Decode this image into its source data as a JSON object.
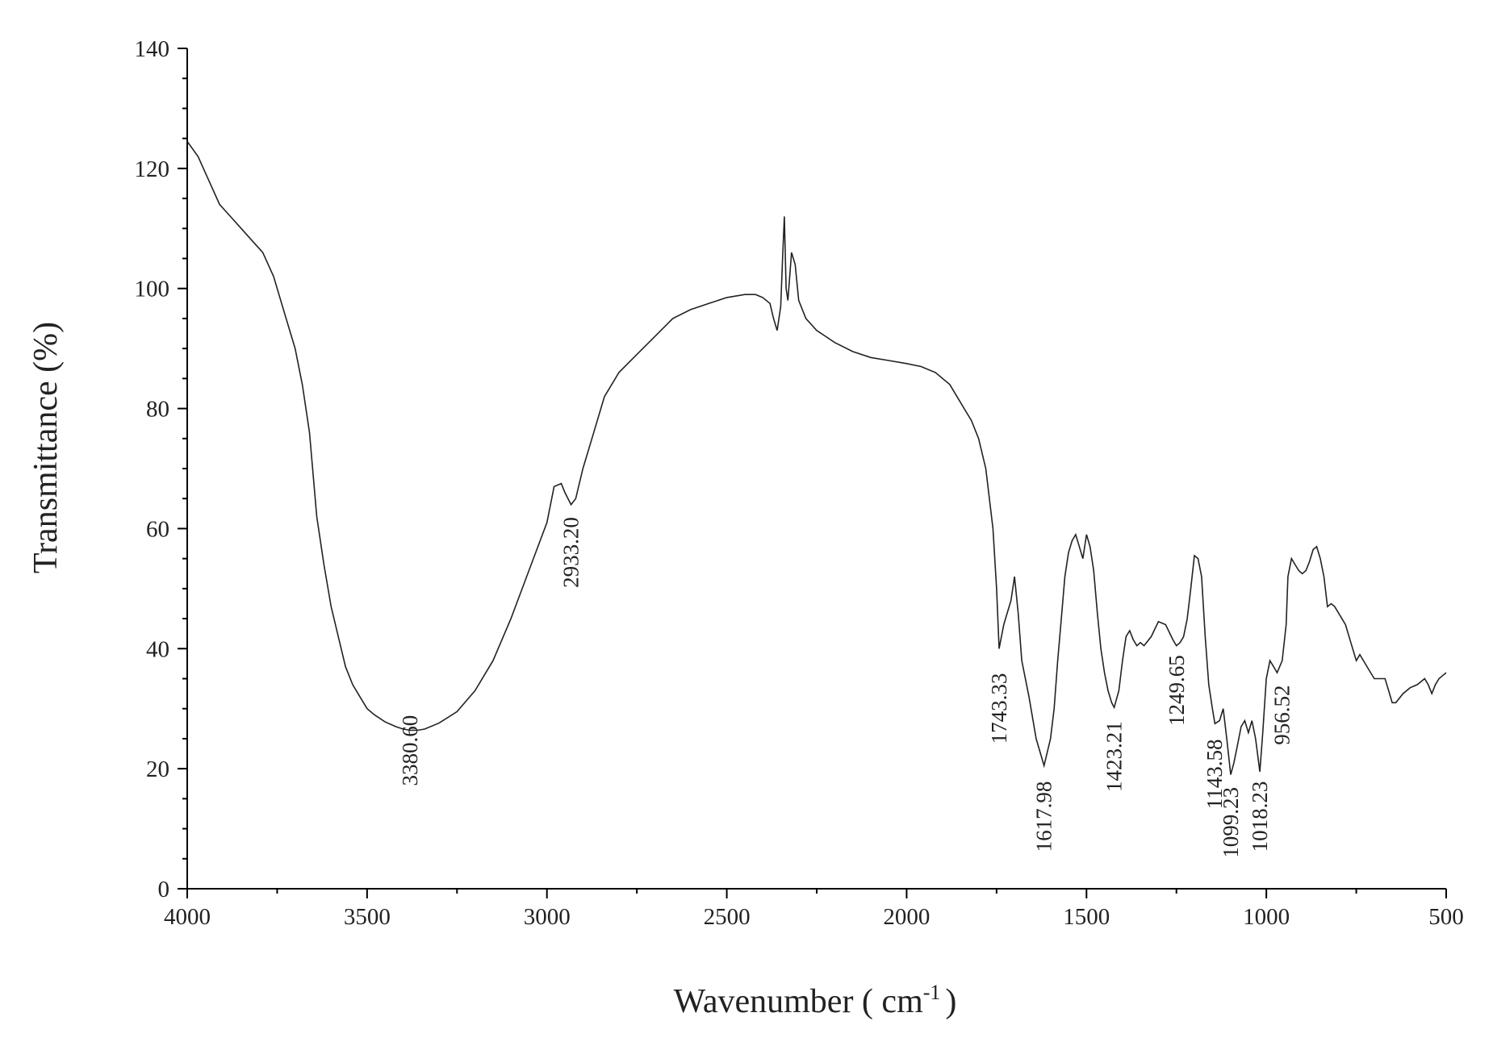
{
  "chart_data": {
    "type": "line",
    "title": "",
    "xlabel": "Wavenumber ( cm",
    "xlabel_sup": "-1",
    "xlabel_close": ")",
    "ylabel": "Transmittance (%)",
    "xlim": [
      4000,
      500
    ],
    "ylim": [
      0,
      140
    ],
    "x_reversed": true,
    "grid": false,
    "xticks": [
      4000,
      3500,
      3000,
      2500,
      2000,
      1500,
      1000,
      500
    ],
    "yticks": [
      0,
      20,
      40,
      60,
      80,
      100,
      120,
      140
    ],
    "xtick_labels": [
      "4000",
      "3500",
      "3000",
      "2500",
      "2000",
      "1500",
      "1000",
      "500"
    ],
    "ytick_labels": [
      "0",
      "20",
      "40",
      "60",
      "80",
      "100",
      "120",
      "140"
    ],
    "series": [
      {
        "x": [
          4000,
          3970,
          3940,
          3910,
          3880,
          3850,
          3820,
          3790,
          3760,
          3730,
          3700,
          3680,
          3660,
          3640,
          3620,
          3600,
          3580,
          3560,
          3540,
          3520,
          3500,
          3480,
          3450,
          3420,
          3400,
          3380,
          3360,
          3340,
          3300,
          3250,
          3200,
          3150,
          3100,
          3050,
          3000,
          2980,
          2960,
          2950,
          2933,
          2920,
          2900,
          2870,
          2840,
          2800,
          2750,
          2700,
          2650,
          2600,
          2550,
          2500,
          2450,
          2420,
          2400,
          2380,
          2370,
          2360,
          2350,
          2345,
          2340,
          2335,
          2330,
          2320,
          2310,
          2300,
          2280,
          2250,
          2200,
          2150,
          2100,
          2050,
          2000,
          1960,
          1920,
          1880,
          1860,
          1840,
          1820,
          1800,
          1780,
          1760,
          1750,
          1743,
          1730,
          1720,
          1710,
          1700,
          1690,
          1680,
          1660,
          1640,
          1618,
          1600,
          1590,
          1580,
          1570,
          1560,
          1550,
          1540,
          1530,
          1520,
          1510,
          1500,
          1490,
          1480,
          1470,
          1460,
          1450,
          1440,
          1430,
          1423,
          1410,
          1400,
          1390,
          1380,
          1370,
          1360,
          1350,
          1340,
          1320,
          1300,
          1280,
          1260,
          1250,
          1240,
          1230,
          1220,
          1210,
          1200,
          1190,
          1180,
          1170,
          1160,
          1150,
          1143,
          1130,
          1120,
          1110,
          1099,
          1090,
          1080,
          1070,
          1060,
          1050,
          1040,
          1030,
          1018,
          1010,
          1000,
          990,
          980,
          970,
          956,
          945,
          940,
          930,
          920,
          910,
          900,
          890,
          880,
          870,
          860,
          850,
          840,
          830,
          820,
          810,
          800,
          780,
          760,
          750,
          740,
          720,
          700,
          680,
          670,
          660,
          650,
          640,
          620,
          600,
          580,
          560,
          550,
          540,
          530,
          520,
          510,
          500
        ],
        "values": [
          124.5,
          122,
          118,
          114,
          112,
          110,
          108,
          106,
          102,
          96,
          90,
          84,
          76,
          62,
          54,
          47,
          42,
          37,
          34,
          32,
          30,
          29,
          27.8,
          27,
          26.6,
          26.4,
          26.4,
          26.6,
          27.6,
          29.5,
          33,
          38,
          45,
          53,
          61,
          67,
          67.5,
          66,
          64,
          65,
          70,
          76,
          82,
          86,
          89,
          92,
          95,
          96.5,
          97.5,
          98.5,
          99,
          99,
          98.5,
          97.5,
          95,
          93,
          97,
          105,
          112,
          100,
          98,
          106,
          104,
          98,
          95,
          93,
          91,
          89.5,
          88.5,
          88,
          87.5,
          87,
          86,
          84,
          82,
          80,
          78,
          75,
          70,
          60,
          50,
          40,
          44,
          46,
          48,
          52,
          46,
          38,
          32,
          25,
          20.5,
          25,
          30,
          38,
          45,
          52,
          56,
          58,
          59,
          57,
          55,
          59,
          57,
          53,
          46,
          40,
          36,
          33,
          31,
          30.2,
          33,
          38,
          42,
          43,
          41.5,
          40.5,
          41,
          40.5,
          42,
          44.5,
          44,
          41.5,
          40.5,
          41,
          42,
          45,
          50,
          55.5,
          55,
          52,
          42,
          34,
          30,
          27.5,
          28,
          30,
          25,
          19,
          21,
          24,
          27,
          28,
          26,
          28,
          25,
          19.5,
          26,
          35,
          38,
          37,
          36,
          38,
          44,
          52,
          55,
          54,
          53,
          52.5,
          53,
          54.5,
          56.5,
          57,
          55,
          52,
          47,
          47.5,
          47,
          46,
          44,
          40,
          38,
          39,
          37,
          35,
          35,
          35,
          33,
          31,
          31,
          32.5,
          33.5,
          34,
          35,
          34,
          32.5,
          34,
          35,
          35.5,
          36
        ]
      }
    ],
    "annotations": [
      {
        "text": "3380.60",
        "x": 3380.6,
        "y": 30
      },
      {
        "text": "2933.20",
        "x": 2933.2,
        "y": 63
      },
      {
        "text": "1743.33",
        "x": 1743.33,
        "y": 37
      },
      {
        "text": "1617.98",
        "x": 1617.98,
        "y": 19
      },
      {
        "text": "1423.21",
        "x": 1423.21,
        "y": 29
      },
      {
        "text": "1249.65",
        "x": 1249.65,
        "y": 40
      },
      {
        "text": "1143.58",
        "x": 1143.58,
        "y": 26
      },
      {
        "text": "1099.23",
        "x": 1099.23,
        "y": 18
      },
      {
        "text": "1018.23",
        "x": 1018.23,
        "y": 19
      },
      {
        "text": "956.52",
        "x": 956.52,
        "y": 35
      }
    ]
  }
}
